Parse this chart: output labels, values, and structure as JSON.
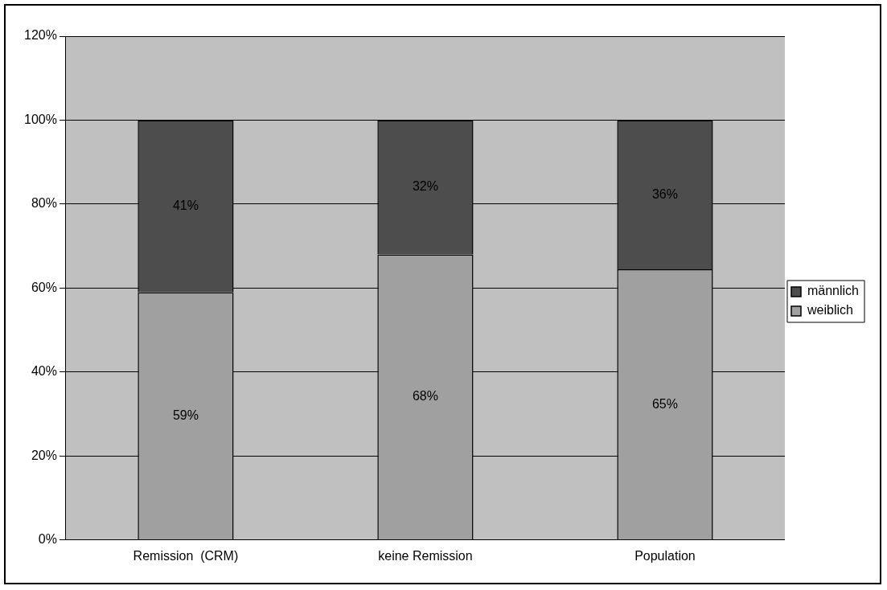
{
  "chart_data": {
    "type": "bar",
    "stacked": true,
    "categories": [
      "Remission  (CRM)",
      "keine Remission",
      "Population"
    ],
    "series": [
      {
        "name": "weiblich",
        "color": "#a0a0a0",
        "values": [
          59,
          68,
          64.5
        ],
        "value_labels": [
          "59%",
          "68%",
          "65%"
        ]
      },
      {
        "name": "männlich",
        "color": "#4d4d4d",
        "values": [
          41,
          32,
          35.5
        ],
        "value_labels": [
          "41%",
          "32%",
          "36%"
        ]
      }
    ],
    "ylim": [
      0,
      120
    ],
    "yticks": [
      {
        "value": 0,
        "label": "0%"
      },
      {
        "value": 20,
        "label": "20%"
      },
      {
        "value": 40,
        "label": "40%"
      },
      {
        "value": 60,
        "label": "60%"
      },
      {
        "value": 80,
        "label": "80%"
      },
      {
        "value": 100,
        "label": "100%"
      },
      {
        "value": 120,
        "label": "120%"
      }
    ],
    "grid": "y",
    "legend": "right"
  }
}
